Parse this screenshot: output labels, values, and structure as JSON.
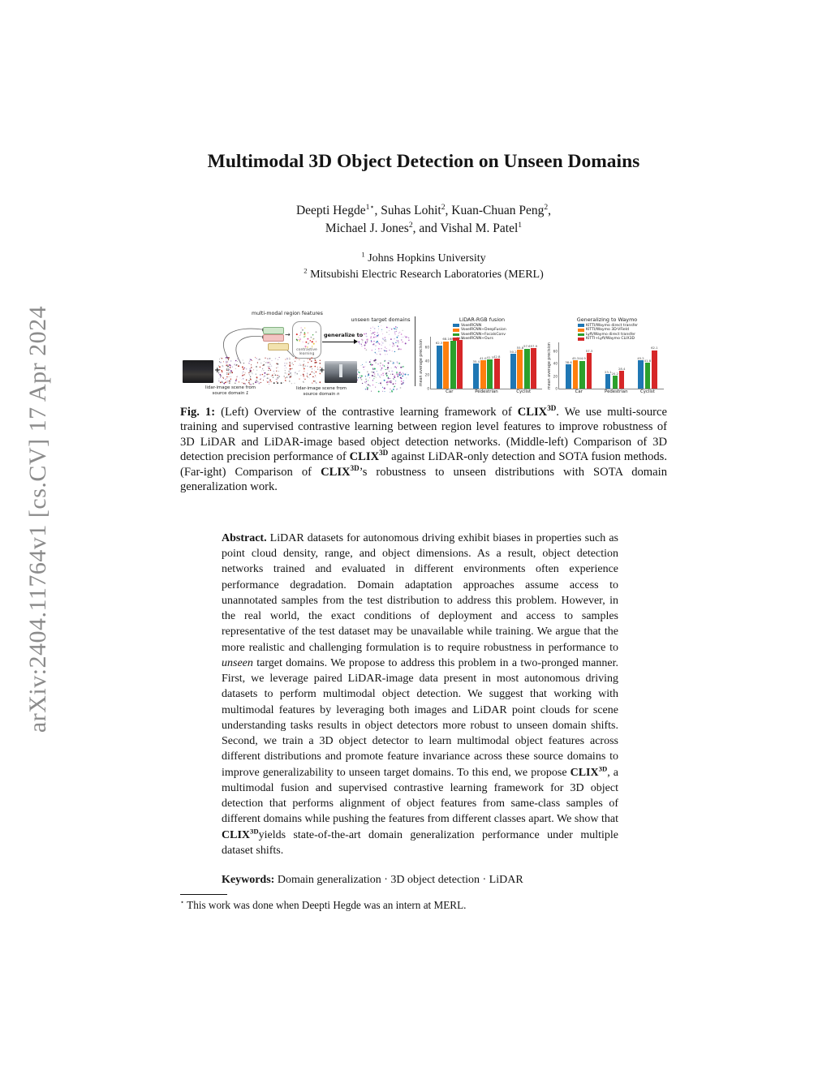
{
  "sidebar": {
    "arxiv_label": "arXiv:2404.11764v1  [cs.CV]  17 Apr 2024"
  },
  "paper": {
    "title": "Multimodal 3D Object Detection on Unseen Domains",
    "authors": {
      "line1": {
        "a1": "Deepti Hegde",
        "s1": "1⋆",
        "a2": ", Suhas Lohit",
        "s2": "2",
        "a3": ", Kuan-Chuan Peng",
        "s3": "2",
        "a4": ","
      },
      "line2": {
        "a1": "Michael J. Jones",
        "s1": "2",
        "a2": ", and Vishal M. Patel",
        "s2": "1"
      }
    },
    "affiliations": {
      "aff1": {
        "sup": "1",
        "text": " Johns Hopkins University"
      },
      "aff2": {
        "sup": "2",
        "text": " Mitsubishi Electric Research Laboratories (MERL)"
      }
    }
  },
  "figure": {
    "diagram": {
      "features_label": "multi-modal region features",
      "contrastive_label": "contrastive learning",
      "generalize_label": "generalize to",
      "unseen_label": "unseen target domains",
      "plus": "+",
      "ellipsis": "...",
      "scene1_line1": "lidar-image scene from",
      "scene1_line2": "source domain ",
      "scene1_num": "1",
      "scene2_line1": "lidar-image scene from",
      "scene2_line2": "source domain ",
      "scene2_num": "n"
    }
  },
  "chart_data": [
    {
      "type": "bar",
      "title": "LiDAR-RGB fusion",
      "ylabel": "mean average precision",
      "xlabel": "",
      "categories": [
        "Car",
        "Pedestrian",
        "Cyclist"
      ],
      "ylim": [
        0,
        75
      ],
      "yticks": [
        0,
        20,
        40,
        60
      ],
      "grid": false,
      "legend_position": "upper-center",
      "series": [
        {
          "name": "VoxelRCNN",
          "color": "#1f77b4",
          "values": [
            62.3,
            35.4,
            50.2
          ]
        },
        {
          "name": "VoxelRCNN+DeepFusion",
          "color": "#ff7f0e",
          "values": [
            68.1,
            41.0,
            55.8
          ]
        },
        {
          "name": "VoxelRCNN+FocalsConv",
          "color": "#2ca02c",
          "values": [
            68.6,
            41.3,
            57.6
          ]
        },
        {
          "name": "VoxelRCNN+Ours",
          "color": "#d62728",
          "values": [
            69.4,
            42.8,
            57.9
          ]
        }
      ]
    },
    {
      "type": "bar",
      "title": "Generalizing to Waymo",
      "ylabel": "mean average precision",
      "xlabel": "",
      "categories": [
        "Car",
        "Pedestrian",
        "Cyclist"
      ],
      "ylim": [
        0,
        75
      ],
      "yticks": [
        0,
        20,
        40,
        60
      ],
      "grid": false,
      "legend_position": "upper-center",
      "series": [
        {
          "name": "KITTI/Waymo direct transfer",
          "color": "#1f77b4",
          "values": [
            38.6,
            23.1,
            45.2
          ]
        },
        {
          "name": "KITTI/Waymo 3D-VField",
          "color": "#ff7f0e",
          "values": [
            45.3,
            null,
            null
          ]
        },
        {
          "name": "Lyft/Waymo direct transfer",
          "color": "#2ca02c",
          "values": [
            44.9,
            20.2,
            41.8
          ]
        },
        {
          "name": "KITTI+Lyft/Waymo CLIX3D",
          "color": "#d62728",
          "values": [
            57.3,
            28.4,
            62.1
          ]
        }
      ]
    }
  ],
  "caption": {
    "tag": "Fig. 1:",
    "seg1": " (Left) Overview of the contrastive learning framework of ",
    "clix": "CLIX",
    "sup": "3D",
    "seg2": ". We use multi-source training and supervised contrastive learning between region level features to improve robustness of 3D LiDAR and LiDAR-image based object detection networks. (Middle-left) Comparison of 3D detection precision performance of ",
    "seg3": " against LiDAR-only detection and SOTA fusion methods. (Far-ight) Comparison of ",
    "seg4": "’s robustness to unseen distributions with SOTA domain generalization work."
  },
  "abstract": {
    "heading": "Abstract.",
    "seg1": " LiDAR datasets for autonomous driving exhibit biases in properties such as point cloud density, range, and object dimensions. As a result, object detection networks trained and evaluated in different environments often experience performance degradation. Domain adaptation approaches assume access to unannotated samples from the test distribution to address this problem. However, in the real world, the exact conditions of deployment and access to samples representative of the test dataset may be unavailable while training. We argue that the more realistic and challenging formulation is to require robustness in performance to ",
    "unseen_italic": "unseen",
    "seg2": " target domains. We propose to address this problem in a two-pronged manner. First, we leverage paired LiDAR-image data present in most autonomous driving datasets to perform multimodal object detection. We suggest that working with multimodal features by leveraging both images and LiDAR point clouds for scene understanding tasks results in object detectors more robust to unseen domain shifts. Second, we train a 3D object detector to learn multimodal object features across different distributions and promote feature invariance across these source domains to improve generalizability to unseen target domains. To this end, we propose ",
    "clix": "CLIX",
    "sup": "3D",
    "seg3": ", a multimodal fusion and supervised contrastive learning framework for 3D object detection that performs alignment of object features from same-class samples of different domains while pushing the features from different classes apart. We show that ",
    "seg4": "yields state-of-the-art domain generalization performance under multiple dataset shifts."
  },
  "keywords": {
    "label": "Keywords:",
    "text": " Domain generalization · 3D object detection · LiDAR"
  },
  "footnote": {
    "star": "⋆",
    "text": " This work was done when Deepti Hegde was an intern at MERL."
  }
}
